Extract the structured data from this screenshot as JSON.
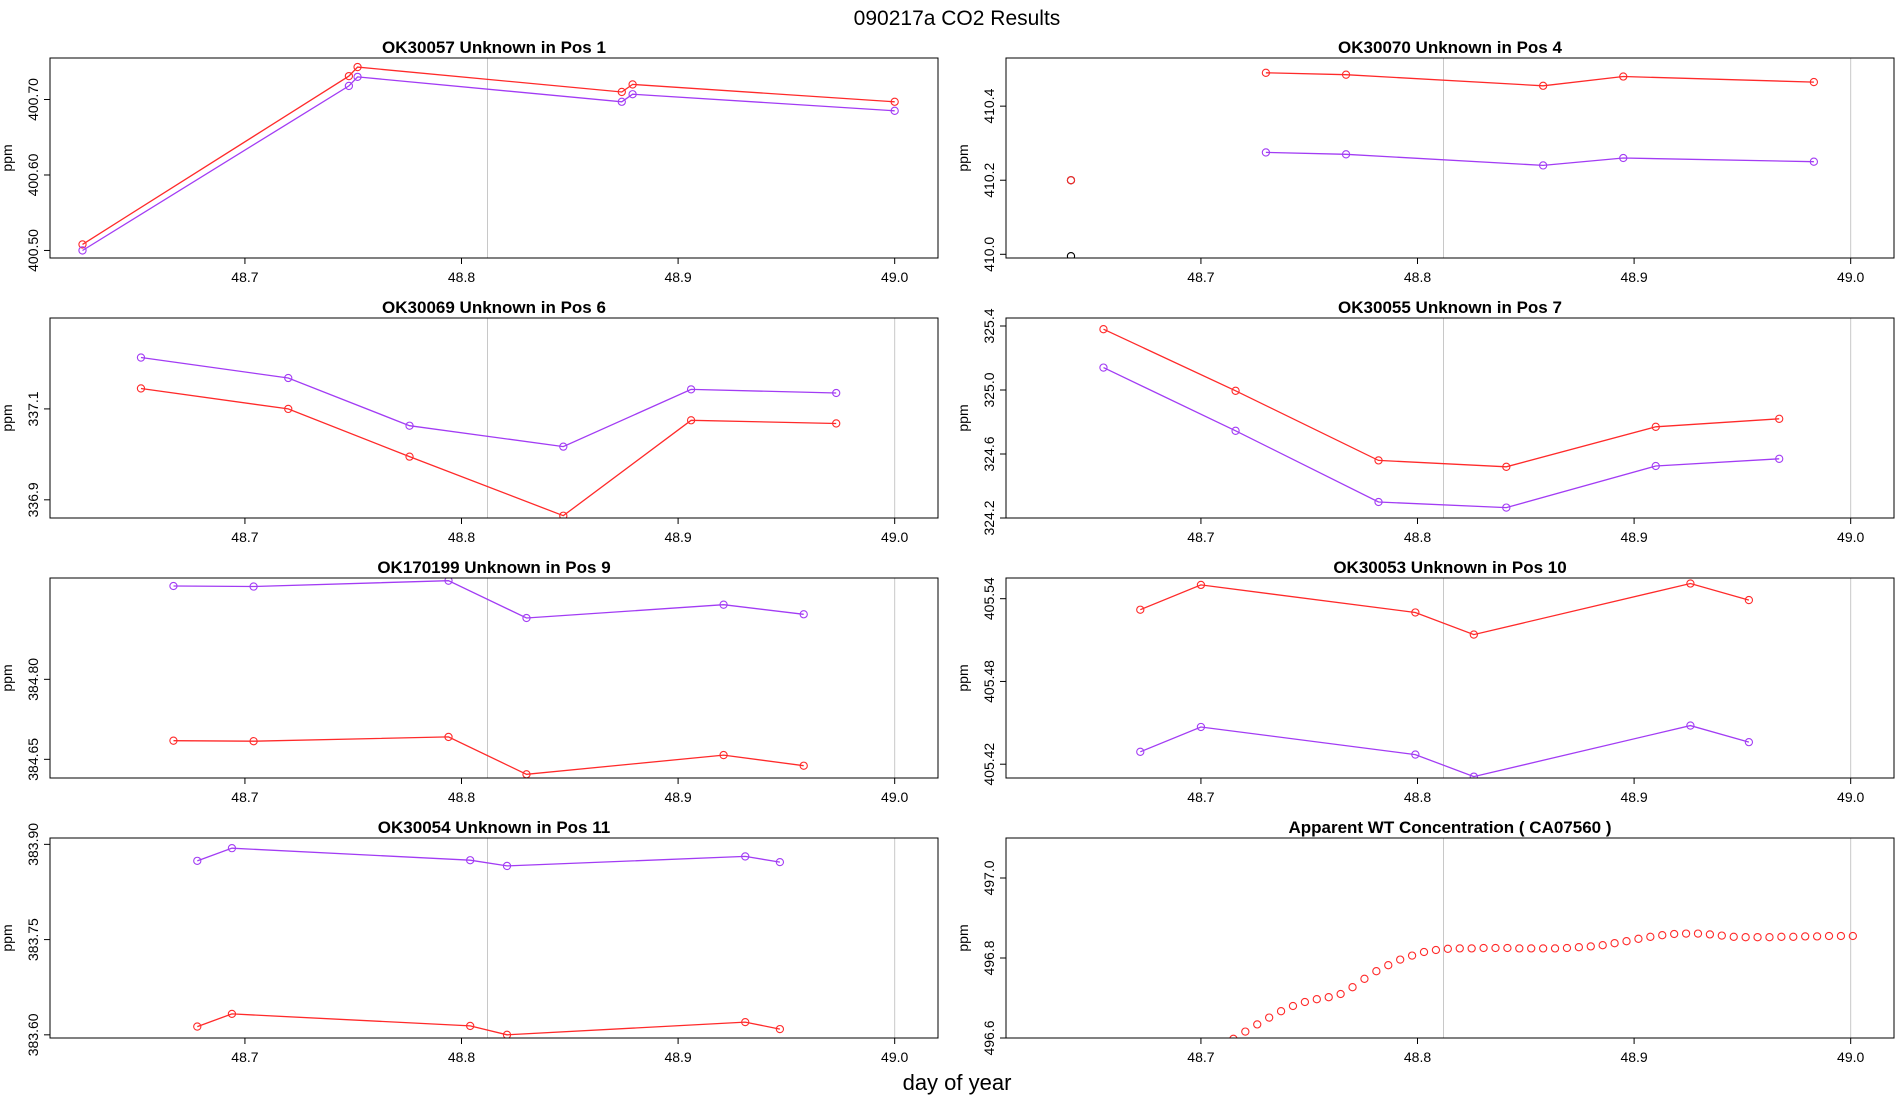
{
  "figure": {
    "title": "090217a  CO2 Results",
    "xlabel": "day of year"
  },
  "colors": {
    "series_a": "#ff2a2a",
    "series_b": "#a23cf4",
    "frame": "#000000",
    "refline": "#c8c8c8",
    "lone_point": "#000000"
  },
  "chart_data": [
    {
      "type": "line",
      "title": "OK30057    Unknown in Pos 1",
      "ylabel": "ppm",
      "xlim": [
        48.61,
        49.02
      ],
      "ylim": [
        400.49,
        400.755
      ],
      "xticks": [
        48.7,
        48.8,
        48.9,
        49.0
      ],
      "xtick_labels": [
        "48.7",
        "48.8",
        "48.9",
        "49.0"
      ],
      "yticks": [
        400.5,
        400.6,
        400.7
      ],
      "ytick_labels": [
        "400.50",
        "400.60",
        "400.70"
      ],
      "refline_x": [
        48.812
      ],
      "series": [
        {
          "name": "red",
          "color": "#ff2a2a",
          "x": [
            48.625,
            48.748,
            48.752,
            48.874,
            48.879,
            49.0
          ],
          "y": [
            400.508,
            400.731,
            400.743,
            400.71,
            400.72,
            400.697
          ]
        },
        {
          "name": "purple",
          "color": "#a23cf4",
          "x": [
            48.625,
            48.748,
            48.752,
            48.874,
            48.879,
            49.0
          ],
          "y": [
            400.5,
            400.718,
            400.73,
            400.697,
            400.707,
            400.685
          ]
        }
      ]
    },
    {
      "type": "line",
      "title": "OK30070    Unknown in Pos 4",
      "ylabel": "ppm",
      "xlim": [
        48.61,
        49.02
      ],
      "ylim": [
        409.99,
        410.53
      ],
      "xticks": [
        48.7,
        48.8,
        48.9,
        49.0
      ],
      "xtick_labels": [
        "48.7",
        "48.8",
        "48.9",
        "49.0"
      ],
      "yticks": [
        410.0,
        410.2,
        410.4
      ],
      "ytick_labels": [
        "410.0",
        "410.2",
        "410.4"
      ],
      "refline_x": [
        48.812,
        49.0
      ],
      "points": [
        {
          "x": 48.64,
          "y": 410.2,
          "color": "#000000"
        },
        {
          "x": 48.64,
          "y": 410.2,
          "color": "#ff2a2a"
        },
        {
          "x": 48.64,
          "y": 409.995,
          "color": "#000000"
        }
      ],
      "series": [
        {
          "name": "red",
          "color": "#ff2a2a",
          "x": [
            48.73,
            48.767,
            48.858,
            48.895,
            48.983
          ],
          "y": [
            410.49,
            410.485,
            410.455,
            410.48,
            410.465
          ]
        },
        {
          "name": "purple",
          "color": "#a23cf4",
          "x": [
            48.73,
            48.767,
            48.858,
            48.895,
            48.983
          ],
          "y": [
            410.275,
            410.27,
            410.24,
            410.26,
            410.25
          ]
        }
      ]
    },
    {
      "type": "line",
      "title": "OK30069    Unknown in Pos 6",
      "ylabel": "ppm",
      "xlim": [
        48.61,
        49.02
      ],
      "ylim": [
        336.86,
        337.3
      ],
      "xticks": [
        48.7,
        48.8,
        48.9,
        49.0
      ],
      "xtick_labels": [
        "48.7",
        "48.8",
        "48.9",
        "49.0"
      ],
      "yticks": [
        336.9,
        337.1
      ],
      "ytick_labels": [
        "336.9",
        "337.1"
      ],
      "refline_x": [
        48.812,
        49.0
      ],
      "series": [
        {
          "name": "red",
          "color": "#ff2a2a",
          "x": [
            48.652,
            48.72,
            48.776,
            48.847,
            48.906,
            48.973
          ],
          "y": [
            337.145,
            337.1,
            336.995,
            336.865,
            337.075,
            337.068
          ]
        },
        {
          "name": "purple",
          "color": "#a23cf4",
          "x": [
            48.652,
            48.72,
            48.776,
            48.847,
            48.906,
            48.973
          ],
          "y": [
            337.213,
            337.168,
            337.063,
            337.017,
            337.143,
            337.135
          ]
        }
      ]
    },
    {
      "type": "line",
      "title": "OK30055    Unknown in Pos 7",
      "ylabel": "ppm",
      "xlim": [
        48.61,
        49.02
      ],
      "ylim": [
        324.2,
        325.45
      ],
      "xticks": [
        48.7,
        48.8,
        48.9,
        49.0
      ],
      "xtick_labels": [
        "48.7",
        "48.8",
        "48.9",
        "49.0"
      ],
      "yticks": [
        324.2,
        324.6,
        325.0,
        325.4
      ],
      "ytick_labels": [
        "324.2",
        "324.6",
        "325.0",
        "325.4"
      ],
      "refline_x": [
        48.812,
        49.0
      ],
      "series": [
        {
          "name": "red",
          "color": "#ff2a2a",
          "x": [
            48.655,
            48.716,
            48.782,
            48.841,
            48.91,
            48.967
          ],
          "y": [
            325.38,
            324.995,
            324.56,
            324.52,
            324.77,
            324.82
          ]
        },
        {
          "name": "purple",
          "color": "#a23cf4",
          "x": [
            48.655,
            48.716,
            48.782,
            48.841,
            48.91,
            48.967
          ],
          "y": [
            325.14,
            324.745,
            324.3,
            324.265,
            324.525,
            324.57
          ]
        }
      ]
    },
    {
      "type": "line",
      "title": "OK170199    Unknown in Pos 9",
      "ylabel": "ppm",
      "xlim": [
        48.61,
        49.02
      ],
      "ylim": [
        384.615,
        384.99
      ],
      "xticks": [
        48.7,
        48.8,
        48.9,
        49.0
      ],
      "xtick_labels": [
        "48.7",
        "48.8",
        "48.9",
        "49.0"
      ],
      "yticks": [
        384.65,
        384.8
      ],
      "ytick_labels": [
        "384.65",
        "384.80"
      ],
      "refline_x": [
        48.812,
        49.0
      ],
      "series": [
        {
          "name": "red",
          "color": "#ff2a2a",
          "x": [
            48.667,
            48.704,
            48.794,
            48.83,
            48.921,
            48.958
          ],
          "y": [
            384.685,
            384.684,
            384.692,
            384.622,
            384.658,
            384.638
          ]
        },
        {
          "name": "purple",
          "color": "#a23cf4",
          "x": [
            48.667,
            48.704,
            48.794,
            48.83,
            48.921,
            48.958
          ],
          "y": [
            384.975,
            384.974,
            384.985,
            384.915,
            384.94,
            384.922
          ]
        }
      ]
    },
    {
      "type": "line",
      "title": "OK30053    Unknown in Pos 10",
      "ylabel": "ppm",
      "xlim": [
        48.61,
        49.02
      ],
      "ylim": [
        405.41,
        405.555
      ],
      "xticks": [
        48.7,
        48.8,
        48.9,
        49.0
      ],
      "xtick_labels": [
        "48.7",
        "48.8",
        "48.9",
        "49.0"
      ],
      "yticks": [
        405.42,
        405.48,
        405.54
      ],
      "ytick_labels": [
        "405.42",
        "405.48",
        "405.54"
      ],
      "refline_x": [
        48.812,
        49.0
      ],
      "series": [
        {
          "name": "red",
          "color": "#ff2a2a",
          "x": [
            48.672,
            48.7,
            48.799,
            48.826,
            48.926,
            48.953
          ],
          "y": [
            405.532,
            405.55,
            405.53,
            405.514,
            405.551,
            405.539
          ]
        },
        {
          "name": "purple",
          "color": "#a23cf4",
          "x": [
            48.672,
            48.7,
            48.799,
            48.826,
            48.926,
            48.953
          ],
          "y": [
            405.429,
            405.447,
            405.427,
            405.411,
            405.448,
            405.436
          ]
        }
      ]
    },
    {
      "type": "line",
      "title": "OK30054    Unknown in Pos 11",
      "ylabel": "ppm",
      "xlim": [
        48.61,
        49.02
      ],
      "ylim": [
        383.595,
        383.91
      ],
      "xticks": [
        48.7,
        48.8,
        48.9,
        49.0
      ],
      "xtick_labels": [
        "48.7",
        "48.8",
        "48.9",
        "49.0"
      ],
      "yticks": [
        383.6,
        383.75,
        383.9
      ],
      "ytick_labels": [
        "383.60",
        "383.75",
        "383.90"
      ],
      "refline_x": [
        48.812,
        49.0
      ],
      "series": [
        {
          "name": "red",
          "color": "#ff2a2a",
          "x": [
            48.678,
            48.694,
            48.804,
            48.821,
            48.931,
            48.947
          ],
          "y": [
            383.613,
            383.633,
            383.614,
            383.6,
            383.62,
            383.609
          ]
        },
        {
          "name": "purple",
          "color": "#a23cf4",
          "x": [
            48.678,
            48.694,
            48.804,
            48.821,
            48.931,
            48.947
          ],
          "y": [
            383.874,
            383.894,
            383.875,
            383.866,
            383.881,
            383.872
          ]
        }
      ]
    },
    {
      "type": "scatter",
      "title": "Apparent WT Concentration ( CA07560 )",
      "ylabel": "ppm",
      "xlim": [
        48.61,
        49.02
      ],
      "ylim": [
        496.6,
        497.1
      ],
      "xticks": [
        48.7,
        48.8,
        48.9,
        49.0
      ],
      "xtick_labels": [
        "48.7",
        "48.8",
        "48.9",
        "49.0"
      ],
      "yticks": [
        496.6,
        496.8,
        497.0
      ],
      "ytick_labels": [
        "496.6",
        "496.8",
        "497.0"
      ],
      "refline_x": [
        48.812,
        49.0
      ],
      "series": [
        {
          "name": "red",
          "color": "#ff2a2a",
          "x": [
            48.715,
            48.7205,
            48.726,
            48.7315,
            48.737,
            48.7425,
            48.748,
            48.7535,
            48.759,
            48.7645,
            48.77,
            48.7755,
            48.781,
            48.7865,
            48.792,
            48.7975,
            48.803,
            48.8085,
            48.814,
            48.8195,
            48.825,
            48.8305,
            48.836,
            48.8415,
            48.847,
            48.8525,
            48.858,
            48.8635,
            48.869,
            48.8745,
            48.88,
            48.8855,
            48.891,
            48.8965,
            48.902,
            48.9075,
            48.913,
            48.9185,
            48.924,
            48.9295,
            48.935,
            48.9405,
            48.946,
            48.9515,
            48.957,
            48.9625,
            48.968,
            48.9735,
            48.979,
            48.9845,
            48.99,
            48.9955,
            49.001
          ],
          "y": [
            496.598,
            496.616,
            496.634,
            496.651,
            496.667,
            496.68,
            496.69,
            496.697,
            496.702,
            496.71,
            496.727,
            496.748,
            496.767,
            496.782,
            496.796,
            496.806,
            496.815,
            496.82,
            496.823,
            496.824,
            496.824,
            496.825,
            496.825,
            496.825,
            496.824,
            496.824,
            496.824,
            496.824,
            496.825,
            496.827,
            496.829,
            496.832,
            496.837,
            496.842,
            496.848,
            496.853,
            496.857,
            496.86,
            496.861,
            496.861,
            496.859,
            496.856,
            496.853,
            496.852,
            496.852,
            496.852,
            496.853,
            496.853,
            496.854,
            496.854,
            496.855,
            496.855,
            496.855
          ]
        }
      ]
    }
  ]
}
